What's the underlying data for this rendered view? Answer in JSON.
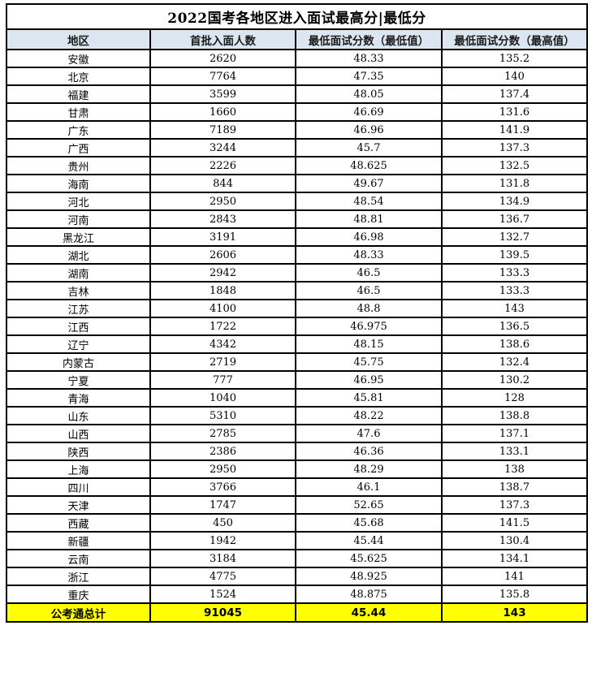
{
  "chart_data": {
    "type": "table",
    "title": "2022国考各地区进入面试最高分|最低分",
    "columns": [
      "地区",
      "首批入面人数",
      "最低面试分数（最低值）",
      "最低面试分数（最高值）"
    ],
    "rows": [
      [
        "安徽",
        "2620",
        "48.33",
        "135.2"
      ],
      [
        "北京",
        "7764",
        "47.35",
        "140"
      ],
      [
        "福建",
        "3599",
        "48.05",
        "137.4"
      ],
      [
        "甘肃",
        "1660",
        "46.69",
        "131.6"
      ],
      [
        "广东",
        "7189",
        "46.96",
        "141.9"
      ],
      [
        "广西",
        "3244",
        "45.7",
        "137.3"
      ],
      [
        "贵州",
        "2226",
        "48.625",
        "132.5"
      ],
      [
        "海南",
        "844",
        "49.67",
        "131.8"
      ],
      [
        "河北",
        "2950",
        "48.54",
        "134.9"
      ],
      [
        "河南",
        "2843",
        "48.81",
        "136.7"
      ],
      [
        "黑龙江",
        "3191",
        "46.98",
        "132.7"
      ],
      [
        "湖北",
        "2606",
        "48.33",
        "139.5"
      ],
      [
        "湖南",
        "2942",
        "46.5",
        "133.3"
      ],
      [
        "吉林",
        "1848",
        "46.5",
        "133.3"
      ],
      [
        "江苏",
        "4100",
        "48.8",
        "143"
      ],
      [
        "江西",
        "1722",
        "46.975",
        "136.5"
      ],
      [
        "辽宁",
        "4342",
        "48.15",
        "138.6"
      ],
      [
        "内蒙古",
        "2719",
        "45.75",
        "132.4"
      ],
      [
        "宁夏",
        "777",
        "46.95",
        "130.2"
      ],
      [
        "青海",
        "1040",
        "45.81",
        "128"
      ],
      [
        "山东",
        "5310",
        "48.22",
        "138.8"
      ],
      [
        "山西",
        "2785",
        "47.6",
        "137.1"
      ],
      [
        "陕西",
        "2386",
        "46.36",
        "133.1"
      ],
      [
        "上海",
        "2950",
        "48.29",
        "138"
      ],
      [
        "四川",
        "3766",
        "46.1",
        "138.7"
      ],
      [
        "天津",
        "1747",
        "52.65",
        "137.3"
      ],
      [
        "西藏",
        "450",
        "45.68",
        "141.5"
      ],
      [
        "新疆",
        "1942",
        "45.44",
        "130.4"
      ],
      [
        "云南",
        "3184",
        "45.625",
        "134.1"
      ],
      [
        "浙江",
        "4775",
        "48.925",
        "141"
      ],
      [
        "重庆",
        "1524",
        "48.875",
        "135.8"
      ]
    ],
    "footer": [
      "公考通总计",
      "91045",
      "45.44",
      "143"
    ]
  },
  "colors": {
    "header_bg": "#dce6f1",
    "footer_bg": "#ffff00",
    "border": "#000000",
    "text": "#000000"
  }
}
